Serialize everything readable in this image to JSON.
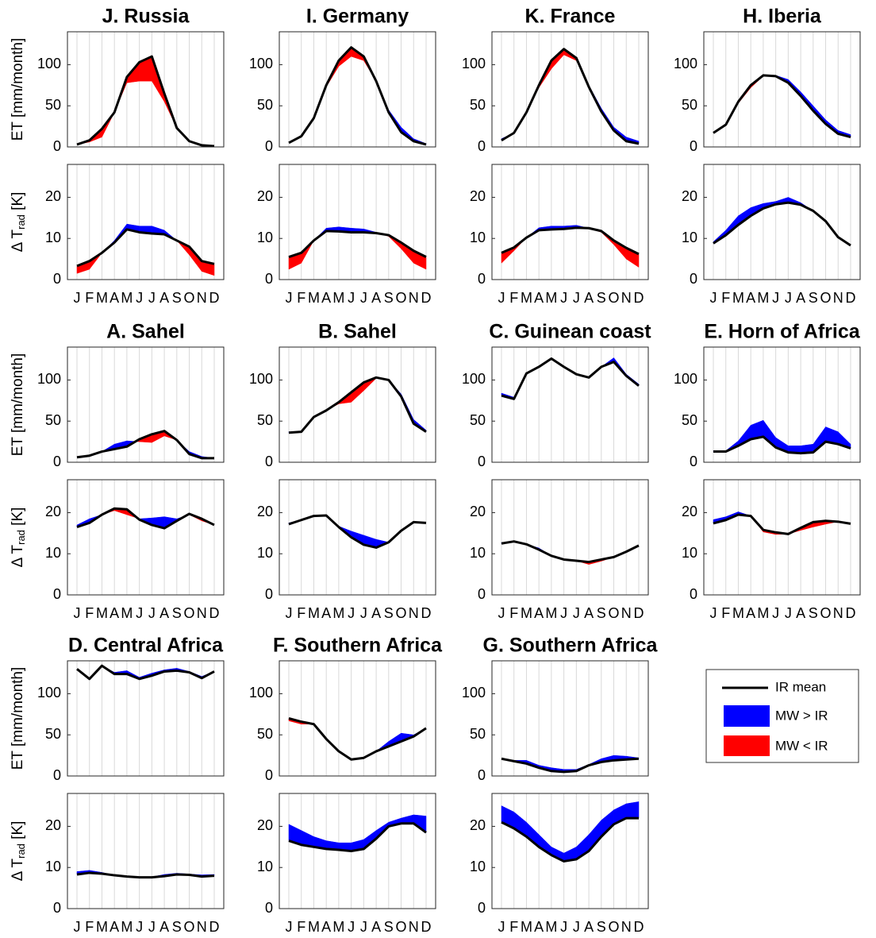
{
  "legend": [
    {
      "name": "IR mean",
      "color": "#000000"
    },
    {
      "name": "MW > IR",
      "color": "#0000ff"
    },
    {
      "name": "MW < IR",
      "color": "#ff0000"
    }
  ],
  "chart_data": [
    {
      "type": "band",
      "title": "J. Russia",
      "categories": [
        "J",
        "F",
        "M",
        "A",
        "M",
        "J",
        "J",
        "A",
        "S",
        "O",
        "N",
        "D"
      ],
      "panels": [
        {
          "ylabel": "ET [mm/month]",
          "ylim": [
            0,
            140
          ],
          "yticks": [
            0,
            50,
            100
          ],
          "ir": [
            3,
            8,
            22,
            42,
            85,
            103,
            110,
            65,
            23,
            7,
            2,
            1
          ],
          "mw": [
            3,
            6,
            12,
            42,
            78,
            80,
            80,
            55,
            23,
            6,
            2,
            1
          ]
        },
        {
          "ylabel": "Δ T",
          "ylabel_sub": "rad",
          "ylabel_unit": " [K]",
          "ylim": [
            0,
            28
          ],
          "yticks": [
            0,
            10,
            20
          ],
          "ir": [
            3.3,
            4.5,
            6.5,
            9,
            12.2,
            11.5,
            11.2,
            11,
            9.5,
            8,
            4.5,
            3.8
          ],
          "mw": [
            1.5,
            2.5,
            6.5,
            9.5,
            13.5,
            13,
            13,
            12,
            9.5,
            6,
            2,
            1
          ]
        }
      ]
    },
    {
      "type": "band",
      "title": "I. Germany",
      "categories": [
        "J",
        "F",
        "M",
        "A",
        "M",
        "J",
        "J",
        "A",
        "S",
        "O",
        "N",
        "D"
      ],
      "panels": [
        {
          "ylim": [
            0,
            140
          ],
          "yticks": [
            0,
            50,
            100
          ],
          "ir": [
            5,
            13,
            35,
            75,
            105,
            121,
            110,
            80,
            42,
            18,
            7,
            3
          ],
          "mw": [
            5,
            13,
            35,
            73,
            98,
            110,
            105,
            80,
            45,
            24,
            10,
            4
          ]
        },
        {
          "ylim": [
            0,
            28
          ],
          "yticks": [
            0,
            10,
            20
          ],
          "ir": [
            5.5,
            6.5,
            9.5,
            11.8,
            11.7,
            11.5,
            11.5,
            11.3,
            10.8,
            9,
            7,
            5.5
          ],
          "mw": [
            2.5,
            4,
            9.5,
            12.5,
            12.8,
            12.5,
            12.3,
            11.5,
            10.5,
            7.5,
            4,
            2.5
          ]
        }
      ]
    },
    {
      "type": "band",
      "title": "K. France",
      "categories": [
        "J",
        "F",
        "M",
        "A",
        "M",
        "J",
        "J",
        "A",
        "S",
        "O",
        "N",
        "D"
      ],
      "panels": [
        {
          "ylim": [
            0,
            140
          ],
          "yticks": [
            0,
            50,
            100
          ],
          "ir": [
            8,
            17,
            42,
            75,
            105,
            119,
            108,
            73,
            43,
            20,
            7,
            4
          ],
          "mw": [
            10,
            17,
            42,
            72,
            95,
            112,
            105,
            75,
            47,
            24,
            12,
            7
          ]
        },
        {
          "ylim": [
            0,
            28
          ],
          "yticks": [
            0,
            10,
            20
          ],
          "ir": [
            6.5,
            7.8,
            10.2,
            12,
            12.2,
            12.3,
            12.6,
            12.5,
            11.8,
            9.5,
            7.7,
            6.2
          ],
          "mw": [
            4,
            7,
            10.2,
            12.6,
            13,
            13,
            13.2,
            12.5,
            11.5,
            8.5,
            5,
            3
          ]
        }
      ]
    },
    {
      "type": "band",
      "title": "H. Iberia",
      "categories": [
        "J",
        "F",
        "M",
        "A",
        "M",
        "J",
        "J",
        "A",
        "S",
        "O",
        "N",
        "D"
      ],
      "panels": [
        {
          "ylim": [
            0,
            140
          ],
          "yticks": [
            0,
            50,
            100
          ],
          "ir": [
            17,
            27,
            55,
            75,
            87,
            86,
            78,
            62,
            44,
            28,
            16,
            12
          ],
          "mw": [
            17,
            27,
            53,
            72,
            86,
            87,
            82,
            67,
            50,
            33,
            20,
            15
          ]
        },
        {
          "ylim": [
            0,
            28
          ],
          "yticks": [
            0,
            10,
            20
          ],
          "ir": [
            8.8,
            10.8,
            13.3,
            15.5,
            17.3,
            18.3,
            18.7,
            18.2,
            16.7,
            14.2,
            10.3,
            8.3
          ],
          "mw": [
            9.2,
            12,
            15.5,
            17.5,
            18.5,
            19,
            20,
            18.7,
            16.7,
            14.2,
            10.3,
            8.3
          ]
        }
      ]
    },
    {
      "type": "band",
      "title": "A. Sahel",
      "categories": [
        "J",
        "F",
        "M",
        "A",
        "M",
        "J",
        "J",
        "A",
        "S",
        "O",
        "N",
        "D"
      ],
      "panels": [
        {
          "ylabel": "ET [mm/month]",
          "ylim": [
            0,
            140
          ],
          "yticks": [
            0,
            50,
            100
          ],
          "ir": [
            6,
            8,
            13,
            16,
            19,
            28,
            34,
            38,
            27,
            10,
            5,
            5
          ],
          "mw": [
            6,
            8,
            13,
            22,
            26,
            25,
            24,
            32,
            27,
            13,
            7,
            5
          ]
        },
        {
          "ylabel": "Δ T",
          "ylabel_sub": "rad",
          "ylabel_unit": " [K]",
          "ylim": [
            0,
            28
          ],
          "yticks": [
            0,
            10,
            20
          ],
          "ir": [
            16.5,
            17.5,
            19.5,
            21,
            20.8,
            18.3,
            17,
            16.2,
            18,
            19.7,
            18.5,
            17
          ],
          "mw": [
            17,
            18.5,
            19.5,
            20.5,
            19.5,
            18.5,
            18.7,
            19,
            18.5,
            19.5,
            18,
            17
          ]
        }
      ]
    },
    {
      "type": "band",
      "title": "B. Sahel",
      "categories": [
        "J",
        "F",
        "M",
        "A",
        "M",
        "J",
        "J",
        "A",
        "S",
        "O",
        "N",
        "D"
      ],
      "panels": [
        {
          "ylim": [
            0,
            140
          ],
          "yticks": [
            0,
            50,
            100
          ],
          "ir": [
            36,
            37,
            55,
            63,
            73,
            85,
            97,
            103,
            100,
            80,
            47,
            37
          ],
          "mw": [
            37,
            37,
            55,
            63,
            71,
            73,
            87,
            102,
            100,
            83,
            52,
            39
          ]
        },
        {
          "ylim": [
            0,
            28
          ],
          "yticks": [
            0,
            10,
            20
          ],
          "ir": [
            17.2,
            18.2,
            19.2,
            19.3,
            16.5,
            14,
            12.2,
            11.5,
            12.8,
            15.6,
            17.7,
            17.5
          ],
          "mw": [
            17.5,
            18.2,
            19.2,
            19.3,
            16.7,
            15.5,
            14.5,
            13.5,
            12.8,
            15.6,
            17.7,
            17.5
          ]
        }
      ]
    },
    {
      "type": "band",
      "title": "C. Guinean coast",
      "categories": [
        "J",
        "F",
        "M",
        "A",
        "M",
        "J",
        "J",
        "A",
        "S",
        "O",
        "N",
        "D"
      ],
      "panels": [
        {
          "ylim": [
            0,
            140
          ],
          "yticks": [
            0,
            50,
            100
          ],
          "ir": [
            81,
            77,
            108,
            116,
            126,
            116,
            107,
            103,
            116,
            122,
            105,
            93
          ],
          "mw": [
            84,
            79,
            108,
            116,
            126,
            116,
            107,
            103,
            116,
            127,
            107,
            95
          ]
        },
        {
          "ylim": [
            0,
            28
          ],
          "yticks": [
            0,
            10,
            20
          ],
          "ir": [
            12.5,
            13,
            12.3,
            11,
            9.5,
            8.6,
            8.3,
            8,
            8.6,
            9.2,
            10.5,
            12
          ],
          "mw": [
            12.7,
            13,
            12.3,
            11.4,
            9.5,
            8.6,
            8.3,
            7.4,
            8.2,
            9.2,
            10.5,
            12
          ]
        }
      ]
    },
    {
      "type": "band",
      "title": "E. Horn of Africa",
      "categories": [
        "J",
        "F",
        "M",
        "A",
        "M",
        "J",
        "J",
        "A",
        "S",
        "O",
        "N",
        "D"
      ],
      "panels": [
        {
          "ylim": [
            0,
            140
          ],
          "yticks": [
            0,
            50,
            100
          ],
          "ir": [
            13,
            13,
            20,
            28,
            31,
            18,
            12,
            11,
            12,
            25,
            22,
            17
          ],
          "mw": [
            14,
            14,
            26,
            45,
            51,
            30,
            20,
            20,
            22,
            43,
            37,
            22
          ]
        },
        {
          "ylim": [
            0,
            28
          ],
          "yticks": [
            0,
            10,
            20
          ],
          "ir": [
            17.4,
            18.2,
            19.5,
            19.2,
            15.8,
            15.2,
            14.8,
            16.3,
            17.7,
            18,
            17.8,
            17.3
          ],
          "mw": [
            18.3,
            19,
            20.2,
            19.2,
            15.3,
            14.7,
            14.8,
            15.7,
            16.5,
            17.2,
            17.8,
            17.3
          ]
        }
      ]
    },
    {
      "type": "band",
      "title": "D. Central Africa",
      "categories": [
        "J",
        "F",
        "M",
        "A",
        "M",
        "J",
        "J",
        "A",
        "S",
        "O",
        "N",
        "D"
      ],
      "panels": [
        {
          "ylabel": "ET [mm/month]",
          "ylim": [
            0,
            140
          ],
          "yticks": [
            0,
            50,
            100
          ],
          "ir": [
            130,
            118,
            134,
            124,
            124,
            118,
            122,
            127,
            128,
            126,
            119,
            127
          ],
          "mw": [
            130,
            118,
            134,
            126,
            128,
            120,
            125,
            129,
            131,
            127,
            121,
            127
          ]
        },
        {
          "ylabel": "Δ T",
          "ylabel_sub": "rad",
          "ylabel_unit": " [K]",
          "ylim": [
            0,
            28
          ],
          "yticks": [
            0,
            10,
            20
          ],
          "ir": [
            8.3,
            8.7,
            8.5,
            8.1,
            7.8,
            7.6,
            7.6,
            7.9,
            8.3,
            8.2,
            7.8,
            8
          ],
          "mw": [
            9,
            9.3,
            8.8,
            8.1,
            7.8,
            7.7,
            7.7,
            8.3,
            8.6,
            8.4,
            8.2,
            8.3
          ]
        }
      ]
    },
    {
      "type": "band",
      "title": "F. Southern Africa",
      "categories": [
        "J",
        "F",
        "M",
        "A",
        "M",
        "J",
        "J",
        "A",
        "S",
        "O",
        "N",
        "D"
      ],
      "panels": [
        {
          "ylim": [
            0,
            140
          ],
          "yticks": [
            0,
            50,
            100
          ],
          "ir": [
            70,
            66,
            63,
            45,
            30,
            20,
            22,
            30,
            36,
            42,
            48,
            58
          ],
          "mw": [
            67,
            63,
            63,
            45,
            30,
            20,
            22,
            30,
            42,
            52,
            50,
            58
          ]
        },
        {
          "ylim": [
            0,
            28
          ],
          "yticks": [
            0,
            10,
            20
          ],
          "ir": [
            16.5,
            15.5,
            15,
            14.5,
            14.3,
            14,
            14.5,
            17,
            20,
            20.7,
            20.7,
            18.5
          ],
          "mw": [
            20.5,
            19,
            17.5,
            16.5,
            16,
            16,
            16.8,
            19,
            21,
            22,
            22.8,
            22.5
          ]
        }
      ]
    },
    {
      "type": "band",
      "title": "G. Southern Africa",
      "categories": [
        "J",
        "F",
        "M",
        "A",
        "M",
        "J",
        "J",
        "A",
        "S",
        "O",
        "N",
        "D"
      ],
      "panels": [
        {
          "ylim": [
            0,
            140
          ],
          "yticks": [
            0,
            50,
            100
          ],
          "ir": [
            21,
            18,
            15,
            10,
            6,
            5,
            6,
            13,
            17,
            19,
            20,
            21
          ],
          "mw": [
            21,
            19,
            19,
            13,
            10,
            8,
            8,
            14,
            21,
            25,
            24,
            22
          ]
        },
        {
          "ylim": [
            0,
            28
          ],
          "yticks": [
            0,
            10,
            20
          ],
          "ir": [
            21,
            19.5,
            17.5,
            15,
            13,
            11.5,
            12,
            14,
            17.5,
            20.5,
            22,
            22
          ],
          "mw": [
            25,
            23.5,
            21,
            18,
            15,
            13.5,
            15,
            18,
            21.5,
            24,
            25.5,
            26
          ]
        }
      ]
    }
  ]
}
